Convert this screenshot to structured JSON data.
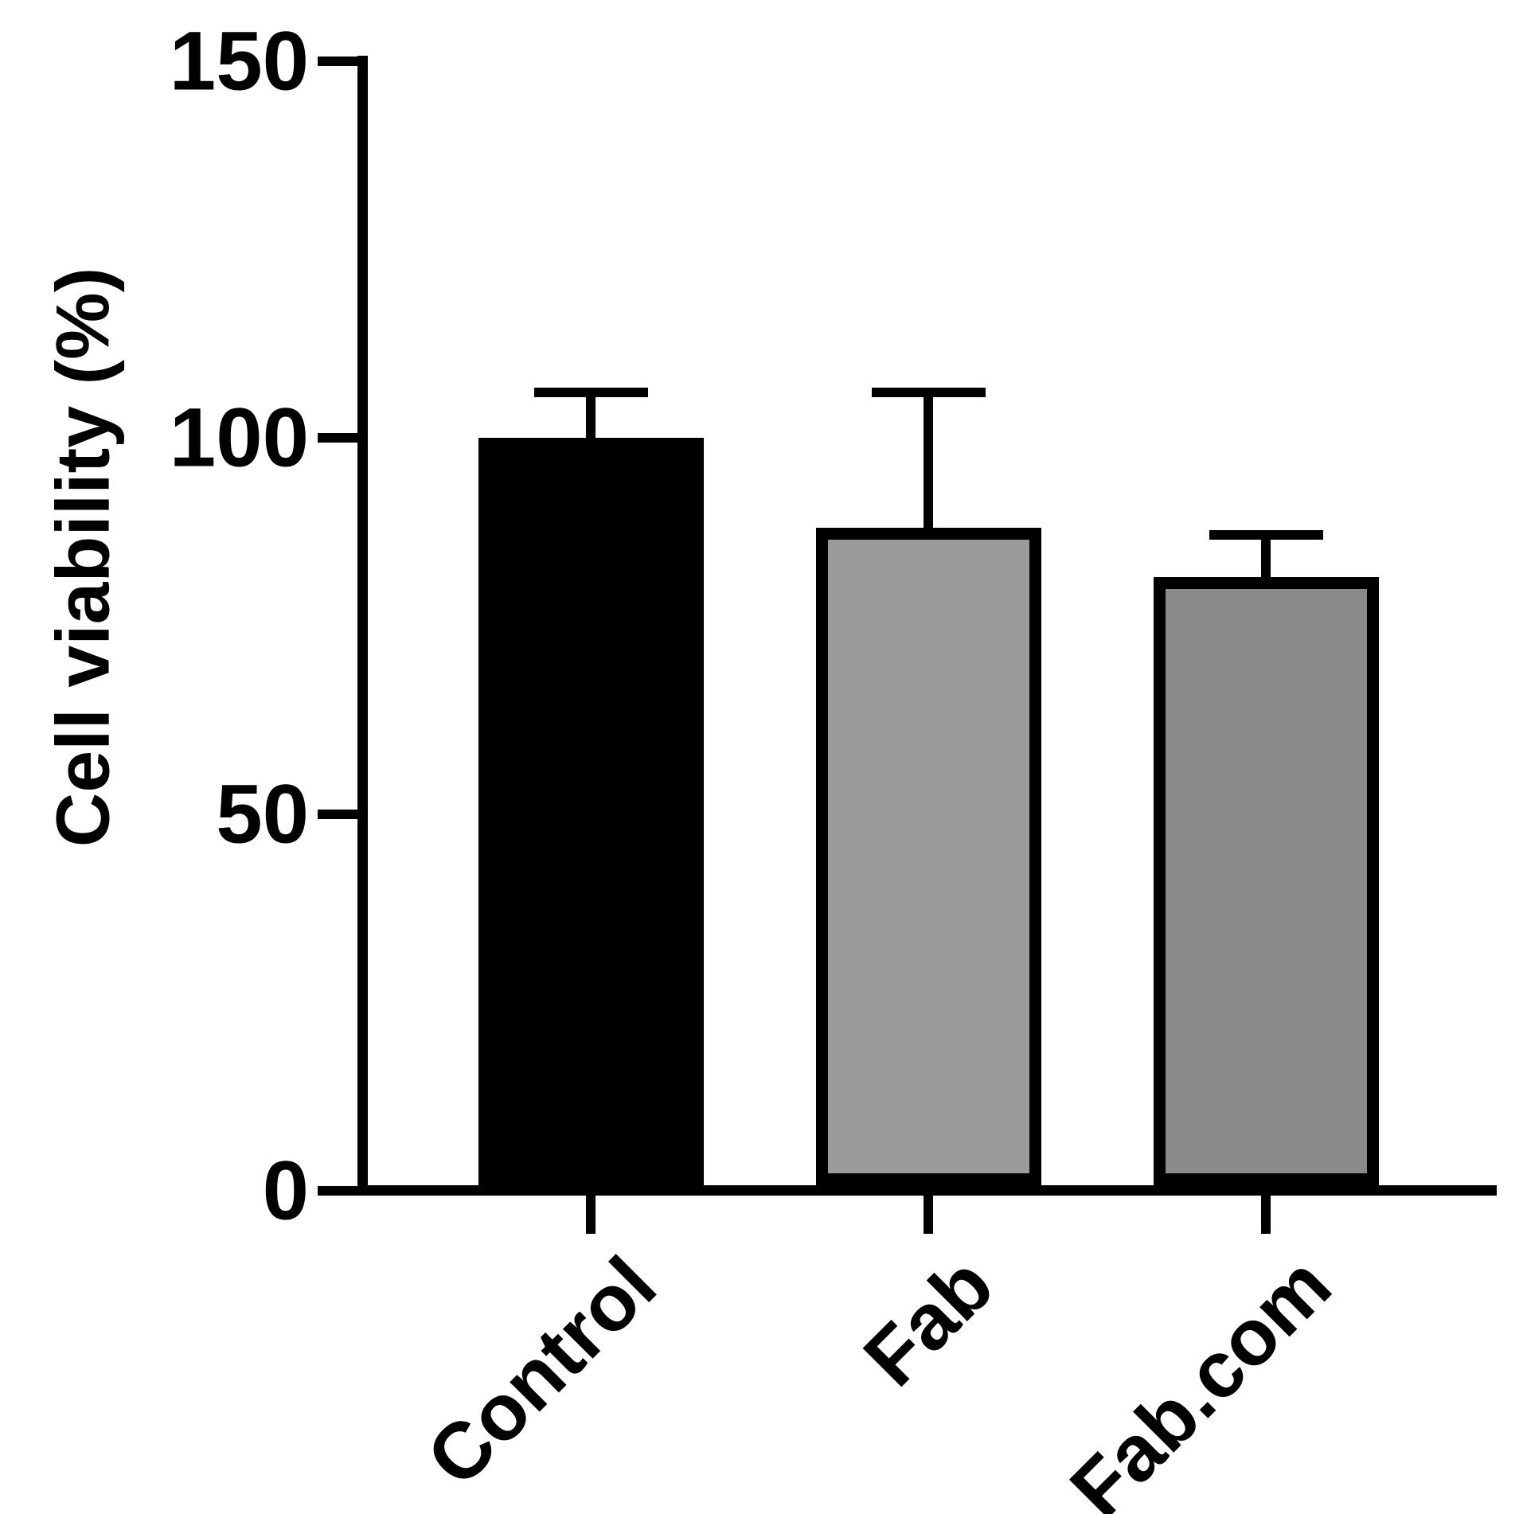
{
  "chart_data": {
    "type": "bar",
    "title": "",
    "ylabel": "Cell viability (%)",
    "xlabel": "",
    "categories": [
      "Control",
      "Fab",
      "Fab.com"
    ],
    "values": [
      100,
      88,
      81.5
    ],
    "errors_up": [
      6,
      18,
      5.6
    ],
    "error_bar_style": "upper-only-with-cap",
    "yticks": [
      "0",
      "50",
      "100",
      "150"
    ],
    "ytick_values": [
      0,
      50,
      100,
      150
    ],
    "ylim": [
      0,
      150
    ],
    "grid": false,
    "legend": null,
    "bar_colors": [
      "#000000",
      "#9b9b9b",
      "#8a8a8a"
    ],
    "bar_border_color": "#000000",
    "axis_color": "#000000",
    "text_color": "#000000",
    "background_color": "#ffffff"
  }
}
